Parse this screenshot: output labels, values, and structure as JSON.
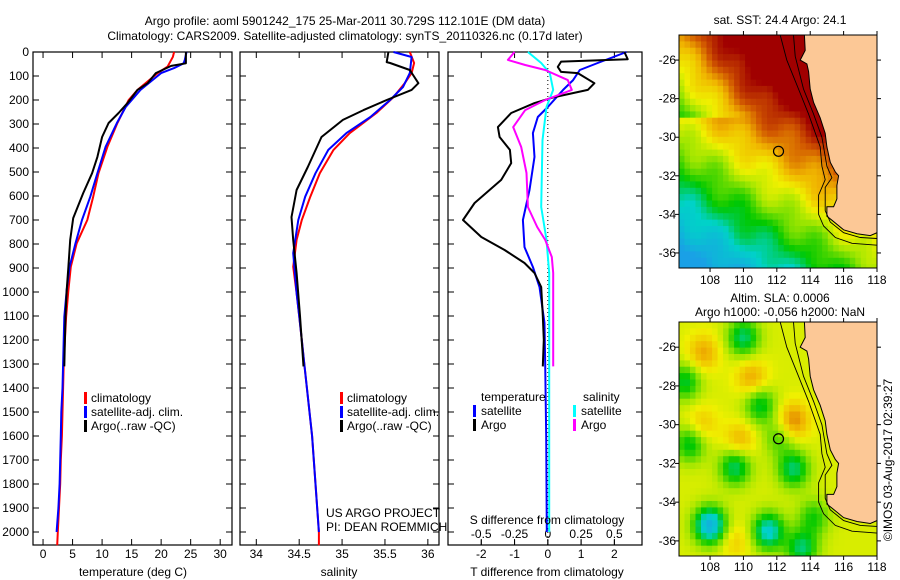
{
  "header": {
    "line1": "Argo profile: aoml 5901242_175 25-Mar-2011 30.729S 112.101E (DM data)",
    "line2": "Climatology: CARS2009. Satellite-adjusted climatology: synTS_20110326.nc (0.17d later)"
  },
  "credits": {
    "project": "US ARGO PROJECT",
    "pi": "PI: DEAN ROEMMICH",
    "copyright": "©IMOS 03-Aug-2017 02:39:27"
  },
  "depth_axis": {
    "ticks": [
      "0",
      "100",
      "200",
      "300",
      "400",
      "500",
      "600",
      "700",
      "800",
      "900",
      "1000",
      "1100",
      "1200",
      "1300",
      "1400",
      "1500",
      "1600",
      "1700",
      "1800",
      "1900",
      "2000"
    ]
  },
  "colors": {
    "climatology": "#ff0000",
    "satellite": "#0000ff",
    "argo": "#000000",
    "s_satellite": "#00ffff",
    "s_argo": "#ff00ff"
  },
  "chart_data": [
    {
      "type": "line",
      "xlabel": "temperature (deg C)",
      "xlim": [
        -1.7,
        32
      ],
      "ylim": [
        0,
        2055
      ],
      "xticks": [
        "0",
        "5",
        "10",
        "15",
        "20",
        "25",
        "30"
      ],
      "xtick_values": [
        0,
        5,
        10,
        15,
        20,
        25,
        30
      ],
      "legend": [
        "climatology",
        "satellite-adj. clim.",
        "Argo(..raw -QC)"
      ],
      "series": [
        {
          "name": "climatology",
          "color": "#ff0000",
          "depth": [
            0,
            20,
            61,
            88,
            158,
            200,
            296,
            395,
            505,
            603,
            700,
            797,
            895,
            992,
            1104,
            1200,
            1300,
            1400,
            1500,
            1600,
            1700,
            1800,
            1900,
            2000,
            2055
          ],
          "values": [
            22.2,
            22.0,
            21.1,
            19.4,
            16.0,
            14.5,
            12.6,
            10.9,
            9.4,
            8.5,
            7.5,
            5.7,
            4.7,
            4.3,
            3.9,
            3.7,
            3.5,
            3.4,
            3.3,
            3.2,
            3.0,
            2.9,
            2.7,
            2.5,
            2.4
          ]
        },
        {
          "name": "satellite-adj. clim.",
          "color": "#0000ff",
          "depth": [
            0,
            33,
            47,
            67,
            88,
            158,
            229,
            296,
            395,
            505,
            603,
            700,
            797,
            895,
            992,
            1104,
            1200,
            1300,
            1400,
            1500,
            1600,
            1700,
            1800,
            1900,
            2000
          ],
          "values": [
            24.3,
            24.0,
            23.8,
            22.2,
            20.0,
            16.5,
            14.0,
            12.5,
            10.6,
            9.2,
            8.0,
            6.6,
            5.5,
            4.5,
            4.0,
            3.6,
            3.5,
            3.4,
            3.3,
            3.1,
            3.0,
            2.9,
            2.8,
            2.6,
            2.3
          ]
        },
        {
          "name": "Argo(..raw -QC)",
          "color": "#000000",
          "depth": [
            0,
            47,
            58,
            88,
            130,
            158,
            213,
            254,
            296,
            354,
            437,
            505,
            588,
            692,
            783,
            895,
            992,
            1100,
            1200,
            1310
          ],
          "values": [
            24.2,
            24.2,
            21.7,
            19.1,
            17.7,
            16.0,
            14.3,
            12.8,
            11.1,
            10.0,
            9.2,
            8.3,
            6.8,
            5.1,
            4.6,
            4.3,
            4.0,
            3.8,
            3.7,
            3.6
          ]
        }
      ]
    },
    {
      "type": "line",
      "xlabel": "salinity",
      "xlim": [
        33.81,
        36.13
      ],
      "ylim": [
        0,
        2055
      ],
      "xticks": [
        "34",
        "34.5",
        "35",
        "35.5",
        "36"
      ],
      "xtick_values": [
        34,
        34.5,
        35,
        35.5,
        36
      ],
      "legend": [
        "climatology",
        "satellite-adj. clim.",
        "Argo(..raw -QC)"
      ],
      "series": [
        {
          "name": "climatology",
          "color": "#ff0000",
          "depth": [
            0,
            46,
            88,
            130,
            188,
            254,
            338,
            408,
            505,
            603,
            700,
            783,
            895,
            1004,
            1100,
            1200,
            1300,
            1400,
            1600,
            1800,
            2000,
            2055
          ],
          "values": [
            35.79,
            35.84,
            35.81,
            35.73,
            35.6,
            35.4,
            35.09,
            34.9,
            34.74,
            34.63,
            34.53,
            34.47,
            34.43,
            34.47,
            34.5,
            34.53,
            34.56,
            34.59,
            34.65,
            34.69,
            34.73,
            34.73
          ]
        },
        {
          "name": "satellite-adj. clim.",
          "color": "#0000ff",
          "depth": [
            0,
            21,
            88,
            146,
            200,
            271,
            338,
            408,
            505,
            603,
            700,
            838,
            1004,
            1100,
            1200,
            1300,
            1400,
            1600,
            1800,
            2000
          ],
          "values": [
            35.6,
            35.81,
            35.79,
            35.71,
            35.56,
            35.33,
            35.05,
            34.84,
            34.69,
            34.57,
            34.49,
            34.43,
            34.47,
            34.5,
            34.53,
            34.56,
            34.59,
            34.65,
            34.69,
            34.73
          ]
        },
        {
          "name": "Argo(..raw -QC)",
          "color": "#000000",
          "depth": [
            0,
            42,
            46,
            75,
            130,
            158,
            200,
            242,
            283,
            354,
            479,
            575,
            688,
            783,
            921,
            1100,
            1310
          ],
          "values": [
            35.54,
            35.52,
            35.56,
            35.79,
            35.89,
            35.81,
            35.52,
            35.25,
            35.01,
            34.76,
            34.6,
            34.47,
            34.41,
            34.43,
            34.47,
            34.51,
            34.55
          ]
        }
      ]
    },
    {
      "type": "line",
      "xlabel": "T difference from climatology",
      "xlabel2": "S difference from climatology",
      "xlim": [
        -3.0,
        2.83
      ],
      "xlim_s": [
        -0.75,
        0.7075
      ],
      "ylim": [
        0,
        2055
      ],
      "xticks": [
        "-2",
        "-1",
        "0",
        "1",
        "2"
      ],
      "xtick_values": [
        -2,
        -1,
        0,
        1,
        2
      ],
      "sticks": [
        "-0.5",
        "-0.25",
        "0",
        "0.25",
        "0.5"
      ],
      "stick_values": [
        -0.5,
        -0.25,
        0,
        0.25,
        0.5
      ],
      "legend_t": {
        "title": "temperature",
        "items": [
          "satellite",
          "Argo"
        ]
      },
      "legend_s": {
        "title": "salinity",
        "items": [
          "satellite",
          "Argo"
        ]
      },
      "series": [
        {
          "name": "T satellite",
          "var": "T",
          "color": "#0000ff",
          "depth": [
            0,
            46,
            75,
            117,
            158,
            229,
            271,
            338,
            437,
            575,
            700,
            813,
            896,
            979,
            1129,
            1300,
            1600,
            2000
          ],
          "values": [
            2.36,
            1.5,
            0.96,
            0.76,
            0.46,
            0,
            -0.3,
            -0.45,
            -0.4,
            -0.55,
            -0.75,
            -0.7,
            -0.45,
            -0.25,
            -0.1,
            -0.08,
            -0.05,
            -0.03
          ]
        },
        {
          "name": "T Argo",
          "var": "T",
          "color": "#000000",
          "depth": [
            0,
            30,
            40,
            62,
            83,
            88,
            130,
            158,
            188,
            213,
            254,
            313,
            354,
            408,
            463,
            533,
            629,
            700,
            771,
            825,
            879,
            921,
            979,
            1100,
            1200,
            1310
          ],
          "values": [
            2.3,
            2.4,
            0.4,
            0.3,
            0.4,
            0.9,
            1.4,
            1.2,
            0.2,
            -0.4,
            -1.1,
            -1.5,
            -1.45,
            -1.14,
            -1.1,
            -1.4,
            -2.2,
            -2.55,
            -2.0,
            -1.3,
            -0.7,
            -0.4,
            -0.2,
            -0.15,
            -0.12,
            -0.15
          ]
        },
        {
          "name": "S satellite",
          "var": "S",
          "color": "#00ffff",
          "depth": [
            0,
            46,
            88,
            158,
            229,
            367,
            646,
            783,
            921,
            1300,
            2000
          ],
          "values": [
            -0.15,
            -0.05,
            0.015,
            0.04,
            -0.01,
            -0.04,
            -0.05,
            -0.01,
            0.01,
            0.01,
            0.01
          ]
        },
        {
          "name": "S Argo",
          "var": "S",
          "color": "#ff00ff",
          "depth": [
            0,
            33,
            54,
            75,
            117,
            158,
            200,
            242,
            313,
            396,
            504,
            646,
            729,
            783,
            854,
            921,
            1310
          ],
          "values": [
            -0.25,
            -0.3,
            -0.17,
            -0.02,
            0.15,
            0.18,
            -0.02,
            -0.17,
            -0.26,
            -0.2,
            -0.16,
            -0.15,
            -0.08,
            -0.02,
            0.03,
            0.04,
            0.04
          ]
        }
      ]
    },
    {
      "type": "heatmap",
      "title": "sat. SST: 24.4 Argo: 24.1",
      "field": "SST",
      "lon_range": [
        106.14,
        118
      ],
      "lat_range": [
        -24.7,
        -36.78
      ],
      "xticks": [
        "108",
        "110",
        "112",
        "114",
        "116",
        "118"
      ],
      "xtick_values": [
        108,
        110,
        112,
        114,
        116,
        118
      ],
      "yticks": [
        "-26",
        "-28",
        "-30",
        "-32",
        "-34",
        "-36"
      ],
      "ytick_values": [
        -26,
        -28,
        -30,
        -32,
        -34,
        -36
      ],
      "argo_position": {
        "lon": 112.101,
        "lat": -30.729
      },
      "land_color": "#fcc896"
    },
    {
      "type": "heatmap",
      "title": "Altim. SLA: 0.0006",
      "subtitle": "Argo h1000: -0.056 h2000: NaN",
      "field": "SLA",
      "lon_range": [
        106.14,
        118
      ],
      "lat_range": [
        -24.7,
        -36.78
      ],
      "xticks": [
        "108",
        "110",
        "112",
        "114",
        "116",
        "118"
      ],
      "xtick_values": [
        108,
        110,
        112,
        114,
        116,
        118
      ],
      "yticks": [
        "-26",
        "-28",
        "-30",
        "-32",
        "-34",
        "-36"
      ],
      "ytick_values": [
        -26,
        -28,
        -30,
        -32,
        -34,
        -36
      ],
      "argo_position": {
        "lon": 112.101,
        "lat": -30.729
      },
      "land_color": "#fcc896"
    }
  ],
  "geography": {
    "coastline": [
      [
        113.65,
        -24.7
      ],
      [
        113.7,
        -25.5
      ],
      [
        113.4,
        -26.0
      ],
      [
        113.8,
        -26.2
      ],
      [
        113.9,
        -26.6
      ],
      [
        114.0,
        -27.5
      ],
      [
        114.2,
        -28.2
      ],
      [
        114.6,
        -29.0
      ],
      [
        114.9,
        -29.8
      ],
      [
        115.0,
        -30.5
      ],
      [
        115.2,
        -31.3
      ],
      [
        115.5,
        -31.8
      ],
      [
        115.7,
        -32.0
      ],
      [
        115.6,
        -32.5
      ],
      [
        115.6,
        -33.2
      ],
      [
        115.4,
        -33.6
      ],
      [
        115.0,
        -33.6
      ],
      [
        115.0,
        -34.1
      ],
      [
        115.3,
        -34.3
      ],
      [
        116.0,
        -34.8
      ],
      [
        116.8,
        -35.0
      ],
      [
        117.6,
        -35.1
      ],
      [
        118.0,
        -34.95
      ]
    ],
    "contour_outer": [
      [
        112.2,
        -24.7
      ],
      [
        112.6,
        -26
      ],
      [
        113.3,
        -27.5
      ],
      [
        113.9,
        -28.8
      ],
      [
        114.6,
        -30.5
      ],
      [
        114.7,
        -31.5
      ],
      [
        114.9,
        -32.2
      ],
      [
        114.5,
        -33
      ],
      [
        114.5,
        -34.0
      ],
      [
        114.8,
        -34.6
      ],
      [
        115.5,
        -35.2
      ],
      [
        116.5,
        -35.5
      ],
      [
        118,
        -35.6
      ]
    ],
    "contour_inner": [
      [
        113.0,
        -24.7
      ],
      [
        113.1,
        -25.8
      ],
      [
        113.6,
        -27.5
      ],
      [
        114.2,
        -28.8
      ],
      [
        114.7,
        -30
      ],
      [
        115.0,
        -31.5
      ],
      [
        115.3,
        -32.1
      ],
      [
        114.9,
        -32.6
      ],
      [
        114.9,
        -33.8
      ],
      [
        115.2,
        -34.4
      ],
      [
        116.0,
        -34.95
      ],
      [
        117,
        -35.2
      ],
      [
        118,
        -35.25
      ]
    ]
  }
}
